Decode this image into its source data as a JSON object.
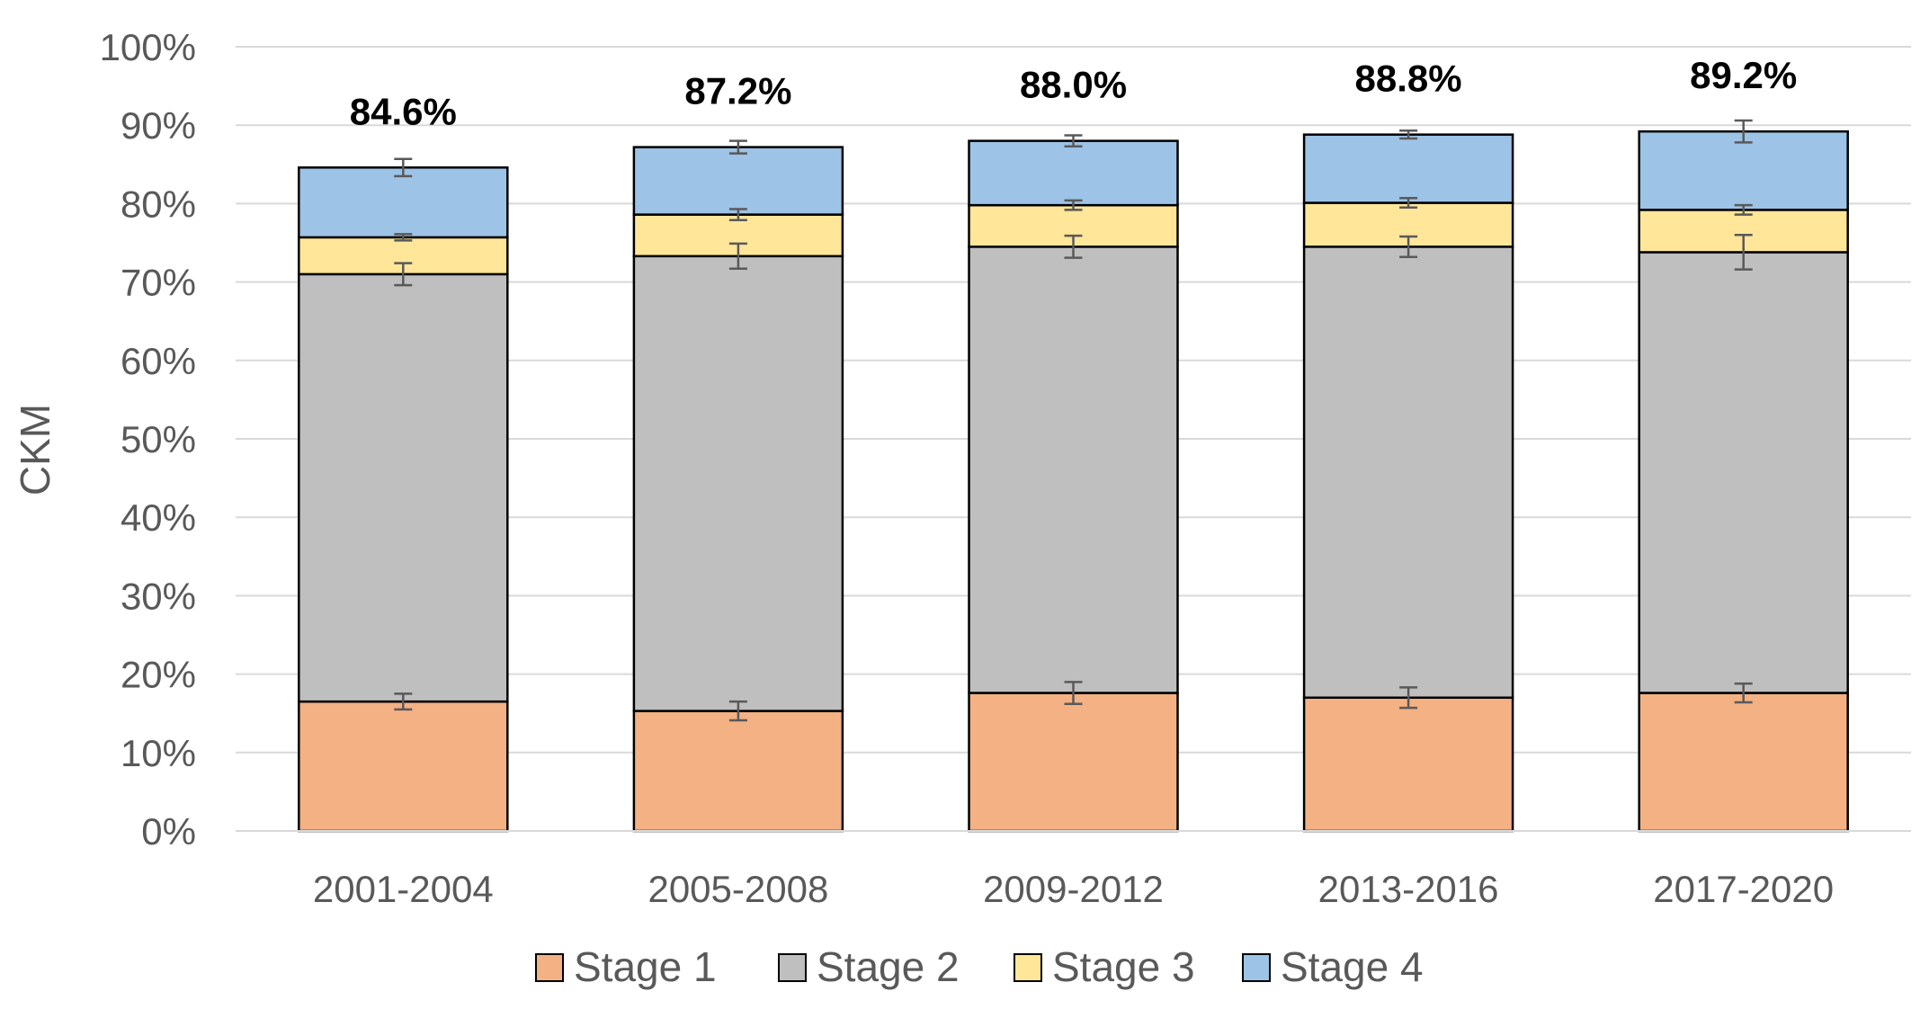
{
  "chart_data": {
    "type": "bar",
    "stacked": true,
    "categories": [
      "2001-2004",
      "2005-2008",
      "2009-2012",
      "2013-2016",
      "2017-2020"
    ],
    "series": [
      {
        "name": "Stage 1",
        "color": "#F4B183",
        "values": [
          16.5,
          15.3,
          17.6,
          17.0,
          17.6
        ],
        "error": [
          1.0,
          1.2,
          1.4,
          1.3,
          1.2
        ]
      },
      {
        "name": "Stage 2",
        "color": "#BFBFBF",
        "values": [
          54.5,
          58.0,
          56.9,
          57.5,
          56.2
        ],
        "error": [
          1.4,
          1.6,
          1.4,
          1.3,
          2.2
        ]
      },
      {
        "name": "Stage 3",
        "color": "#FFE699",
        "values": [
          4.7,
          5.3,
          5.3,
          5.6,
          5.4
        ],
        "error": [
          0.4,
          0.7,
          0.6,
          0.6,
          0.6
        ]
      },
      {
        "name": "Stage 4",
        "color": "#9DC3E6",
        "values": [
          8.9,
          8.6,
          8.2,
          8.7,
          10.0
        ],
        "error": [
          1.1,
          0.8,
          0.7,
          0.5,
          1.4
        ]
      }
    ],
    "totals": [
      "84.6%",
      "87.2%",
      "88.0%",
      "88.8%",
      "89.2%"
    ],
    "ylabel": "CKM",
    "xlabel": "",
    "ylim": [
      0,
      100
    ],
    "yticks": [
      "0%",
      "10%",
      "20%",
      "30%",
      "40%",
      "50%",
      "60%",
      "70%",
      "80%",
      "90%",
      "100%"
    ],
    "grid": true,
    "legend_position": "bottom"
  }
}
